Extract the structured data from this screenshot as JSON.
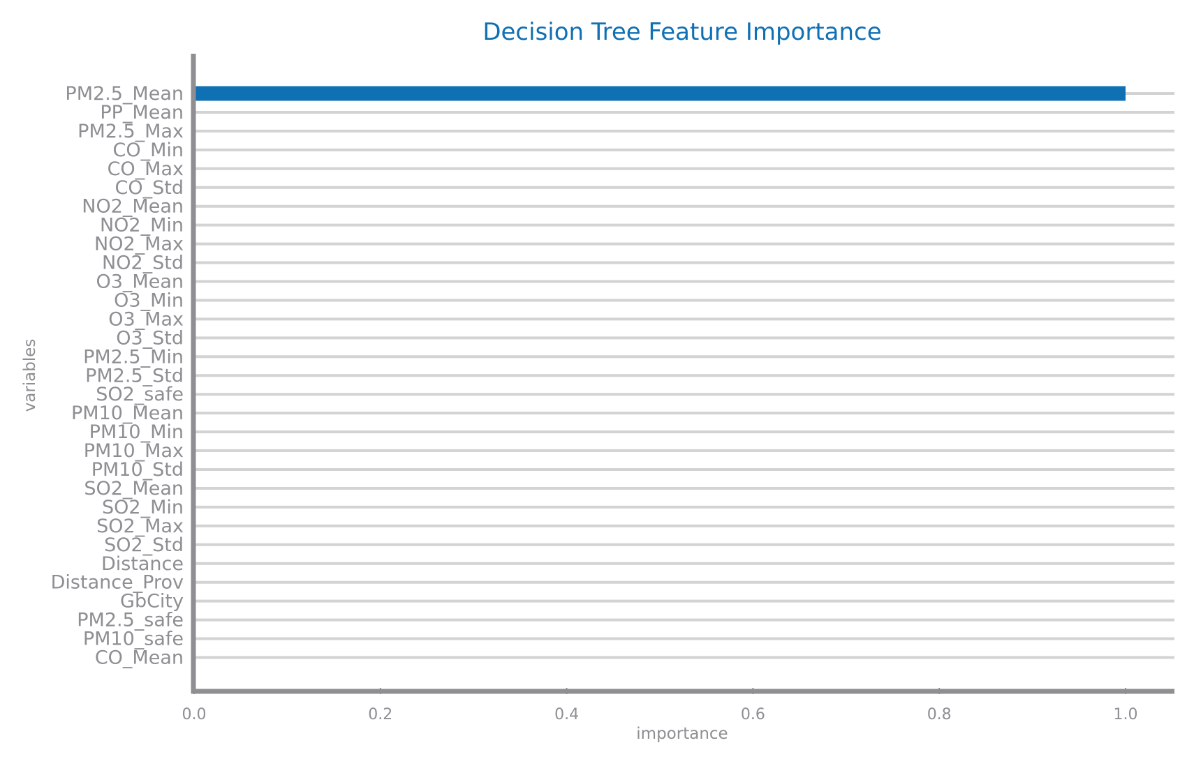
{
  "chart_data": {
    "type": "bar",
    "orientation": "horizontal",
    "title": "Decision Tree Feature Importance",
    "xlabel": "importance",
    "ylabel": "variables",
    "xlim": [
      0,
      1.05
    ],
    "xticks": [
      "0.0",
      "0.2",
      "0.4",
      "0.6",
      "0.8",
      "1.0"
    ],
    "grid": "horizontal lines per category",
    "colors": {
      "bar": "#1070b4",
      "title": "#1070b4",
      "axis": "#8e8e93",
      "grid": "#d3d3d3",
      "label": "#8e8e93"
    },
    "categories": [
      "PM2.5_Mean",
      "PP_Mean",
      "PM2.5_Max",
      "CO_Min",
      "CO_Max",
      "CO_Std",
      "NO2_Mean",
      "NO2_Min",
      "NO2_Max",
      "NO2_Std",
      "O3_Mean",
      "O3_Min",
      "O3_Max",
      "O3_Std",
      "PM2.5_Min",
      "PM2.5_Std",
      "SO2_safe",
      "PM10_Mean",
      "PM10_Min",
      "PM10_Max",
      "PM10_Std",
      "SO2_Mean",
      "SO2_Min",
      "SO2_Max",
      "SO2_Std",
      "Distance",
      "Distance_Prov",
      "GbCity",
      "PM2.5_safe",
      "PM10_safe",
      "CO_Mean"
    ],
    "values": [
      1.0,
      0,
      0,
      0,
      0,
      0,
      0,
      0,
      0,
      0,
      0,
      0,
      0,
      0,
      0,
      0,
      0,
      0,
      0,
      0,
      0,
      0,
      0,
      0,
      0,
      0,
      0,
      0,
      0,
      0,
      0
    ]
  }
}
